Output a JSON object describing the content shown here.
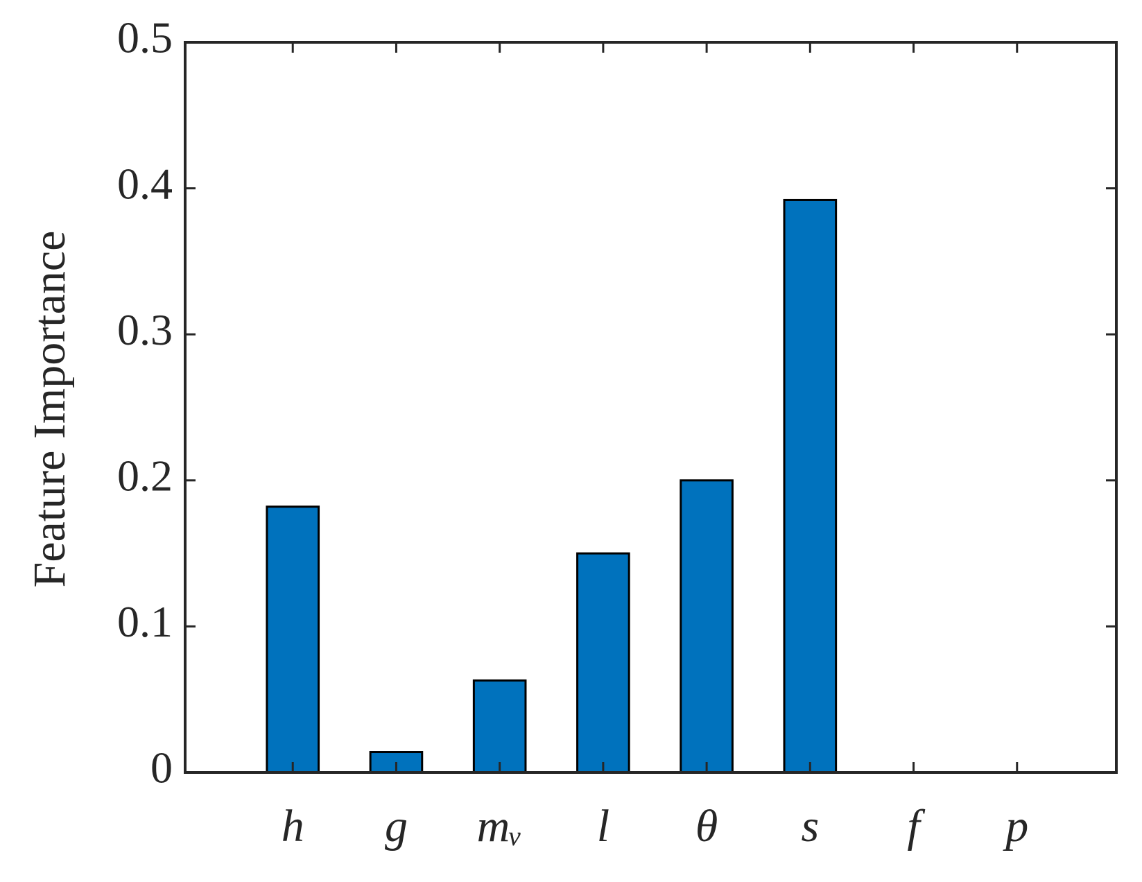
{
  "chart_data": {
    "type": "bar",
    "y_label": "Feature Importance",
    "categories": [
      "h",
      "g",
      "mᵥ",
      "l",
      "θ",
      "s",
      "f",
      "p"
    ],
    "values": [
      0.182,
      0.014,
      0.063,
      0.15,
      0.2,
      0.392,
      0,
      0
    ],
    "color": "#0072BD",
    "ylim": [
      0,
      0.5
    ],
    "yticks": [
      0,
      0.1,
      0.2,
      0.3,
      0.4,
      0.5
    ],
    "grid": false
  }
}
